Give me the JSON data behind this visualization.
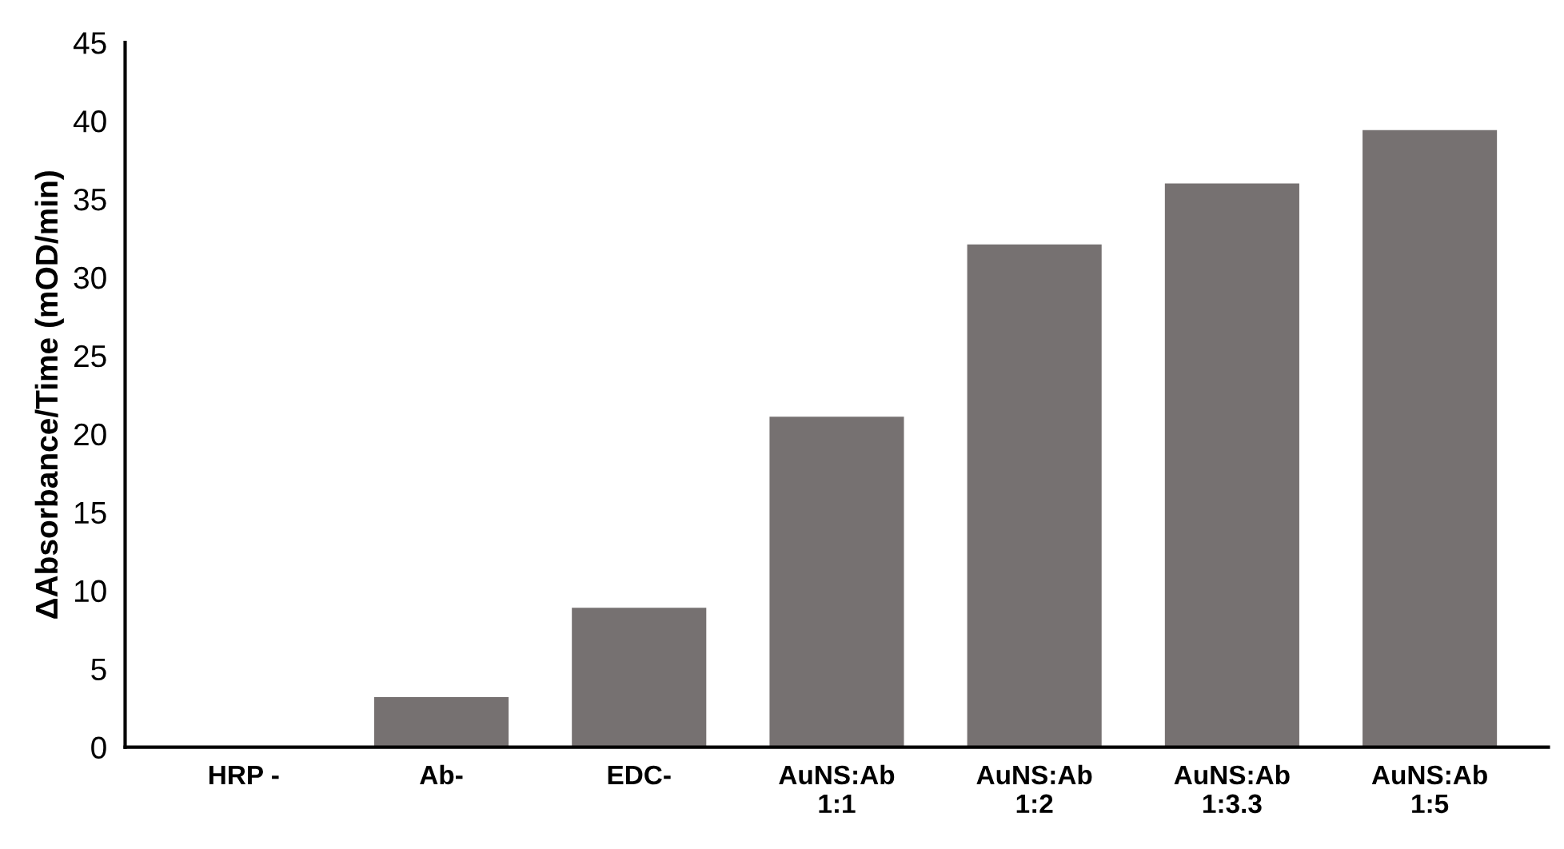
{
  "chart_data": {
    "type": "bar",
    "ylabel": "ΔAbsorbance/Time (mOD/min)",
    "categories": [
      "HRP -",
      "Ab-",
      "EDC-",
      "AuNS:Ab\n1:1",
      "AuNS:Ab\n1:2",
      "AuNS:Ab\n1:3.3",
      "AuNS:Ab\n1:5"
    ],
    "values": [
      0,
      3.2,
      8.9,
      21.1,
      32.1,
      36.0,
      39.4
    ],
    "color": "#767171",
    "ylim": [
      0,
      45
    ],
    "yticks": [
      0,
      5,
      10,
      15,
      20,
      25,
      30,
      35,
      40,
      45
    ],
    "grid": false,
    "legend": false
  }
}
